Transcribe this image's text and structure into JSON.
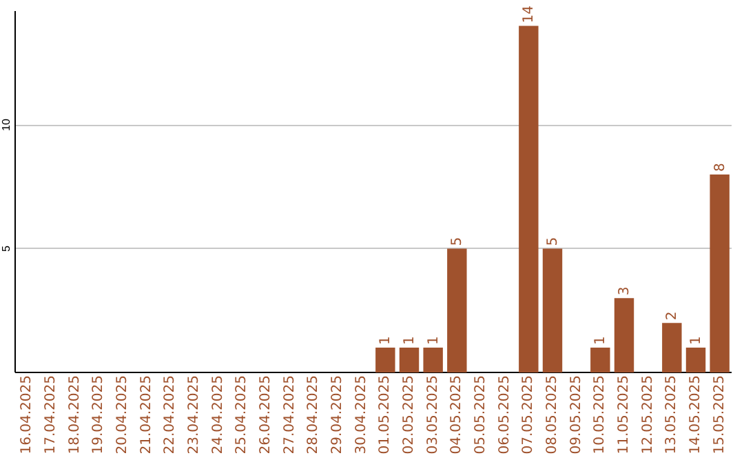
{
  "chart_data": {
    "type": "bar",
    "categories": [
      "16.04.2025",
      "17.04.2025",
      "18.04.2025",
      "19.04.2025",
      "20.04.2025",
      "21.04.2025",
      "22.04.2025",
      "23.04.2025",
      "24.04.2025",
      "25.04.2025",
      "26.04.2025",
      "27.04.2025",
      "28.04.2025",
      "29.04.2025",
      "30.04.2025",
      "01.05.2025",
      "02.05.2025",
      "03.05.2025",
      "04.05.2025",
      "05.05.2025",
      "06.05.2025",
      "07.05.2025",
      "08.05.2025",
      "09.05.2025",
      "10.05.2025",
      "11.05.2025",
      "12.05.2025",
      "13.05.2025",
      "14.05.2025",
      "15.05.2025"
    ],
    "values": [
      0,
      0,
      0,
      0,
      0,
      0,
      0,
      0,
      0,
      0,
      0,
      0,
      0,
      0,
      0,
      1,
      1,
      1,
      5,
      0,
      0,
      14,
      5,
      0,
      1,
      3,
      0,
      2,
      1,
      8
    ],
    "value_labels": [
      null,
      null,
      null,
      null,
      null,
      null,
      null,
      null,
      null,
      null,
      null,
      null,
      null,
      null,
      null,
      "1",
      "1",
      "1",
      "5",
      null,
      null,
      "14",
      "5",
      null,
      "1",
      "3",
      null,
      "2",
      "1",
      "8"
    ],
    "color": "#a0522d",
    "ylim": [
      0,
      14.6
    ],
    "yticks": [
      5,
      10
    ],
    "grid": "y"
  }
}
